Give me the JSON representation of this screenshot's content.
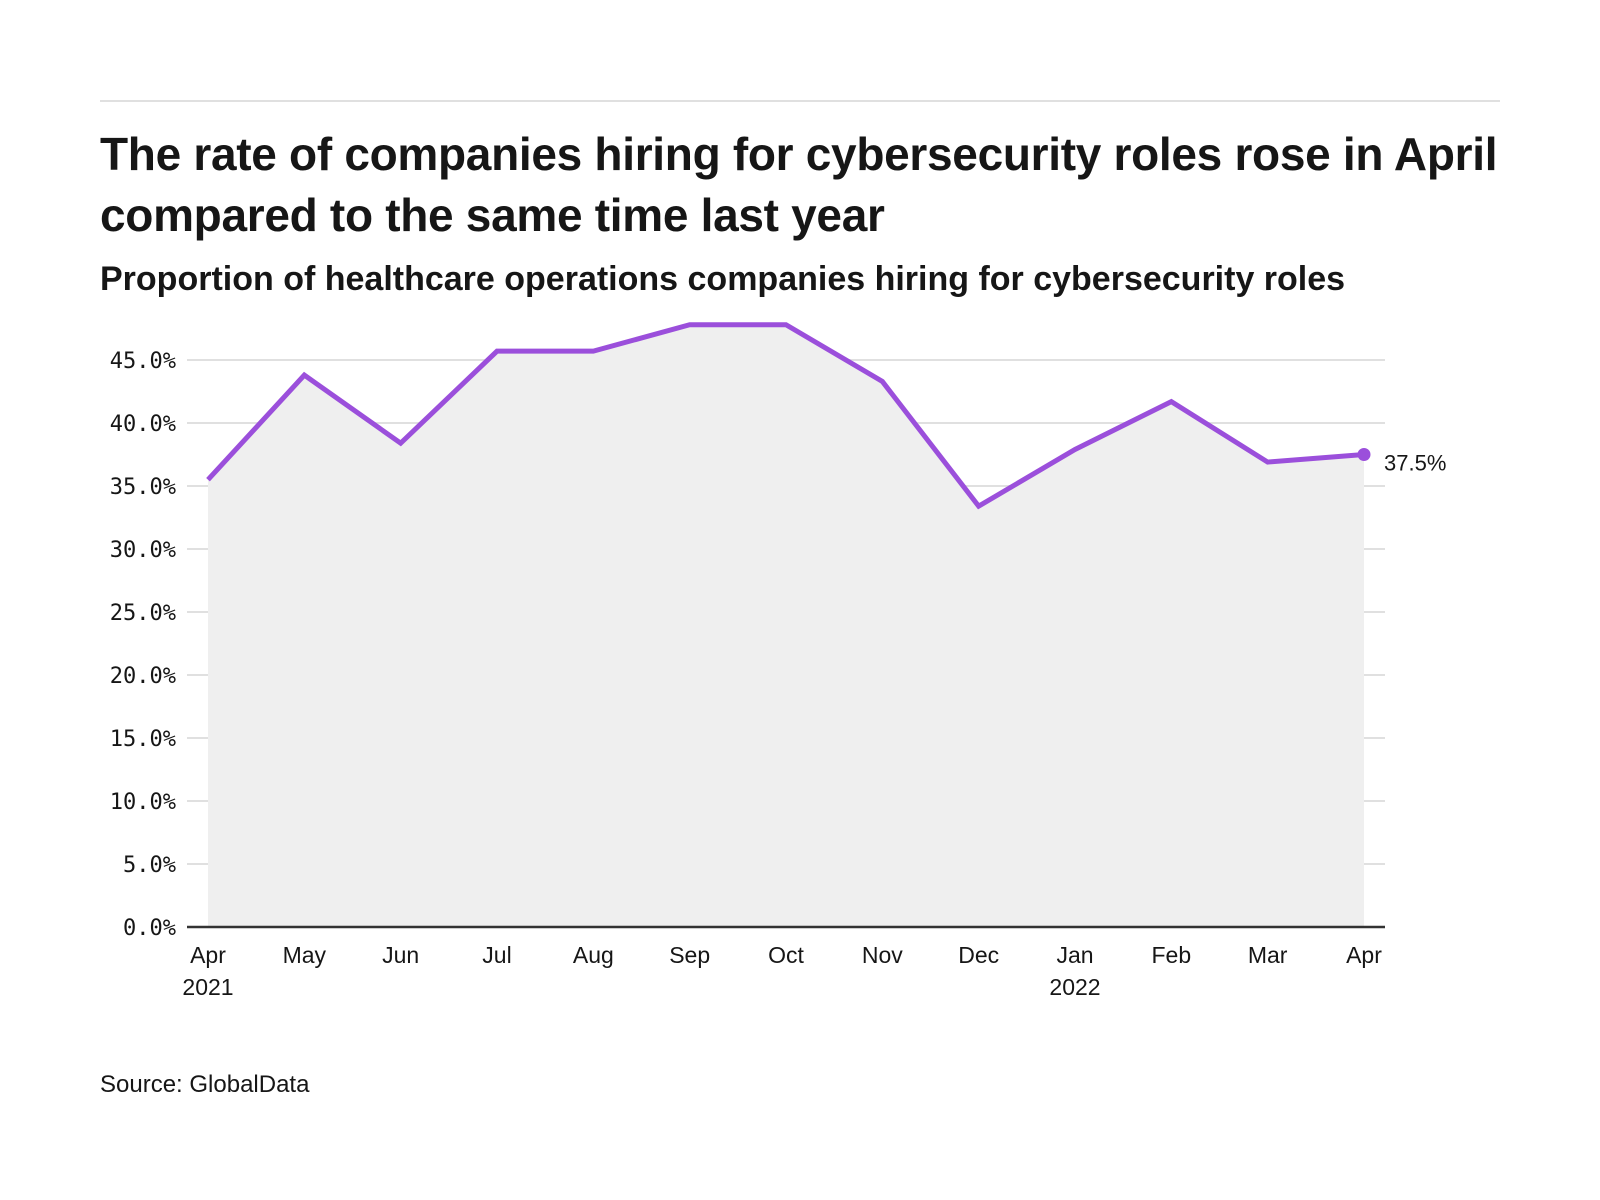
{
  "header": {
    "title": "The rate of companies hiring for cybersecurity roles rose in April compared to the same time last year",
    "subtitle": "Proportion of healthcare operations companies hiring for cybersecurity roles"
  },
  "footer": {
    "source": "Source: GlobalData"
  },
  "colors": {
    "line": "#9b4fdb",
    "area": "#efefef",
    "grid": "#e0e0e0",
    "axis": "#333333"
  },
  "chart_data": {
    "type": "area",
    "title": "The rate of companies hiring for cybersecurity roles rose in April compared to the same time last year",
    "subtitle": "Proportion of healthcare operations companies hiring for cybersecurity roles",
    "xlabel": "",
    "ylabel": "",
    "categories": [
      "Apr",
      "May",
      "Jun",
      "Jul",
      "Aug",
      "Sep",
      "Oct",
      "Nov",
      "Dec",
      "Jan",
      "Feb",
      "Mar",
      "Apr"
    ],
    "category_sublabels": [
      "2021",
      "",
      "",
      "",
      "",
      "",
      "",
      "",
      "",
      "2022",
      "",
      "",
      ""
    ],
    "series": [
      {
        "name": "Healthcare operations companies hiring for cybersecurity roles (%)",
        "values": [
          35.5,
          43.8,
          38.4,
          45.7,
          45.7,
          47.8,
          47.8,
          43.3,
          33.4,
          37.9,
          41.7,
          36.9,
          37.5
        ]
      }
    ],
    "ylim": [
      0,
      45
    ],
    "yticks": [
      0,
      5,
      10,
      15,
      20,
      25,
      30,
      35,
      40,
      45
    ],
    "ytick_labels": [
      "0.0%",
      "5.0%",
      "10.0%",
      "15.0%",
      "20.0%",
      "25.0%",
      "30.0%",
      "35.0%",
      "40.0%",
      "45.0%"
    ],
    "grid": true,
    "end_label": "37.5%",
    "legend": "none",
    "source": "Source: GlobalData"
  }
}
